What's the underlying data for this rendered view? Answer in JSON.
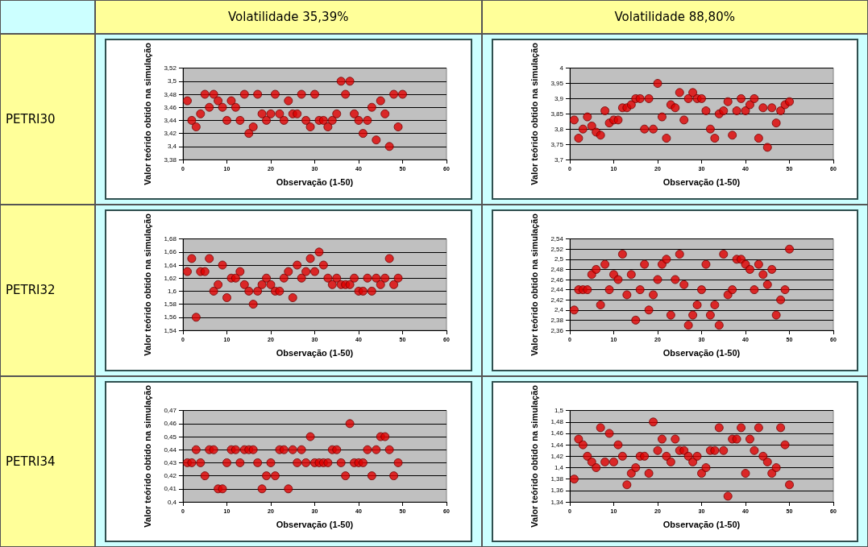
{
  "chart_data": [
    {
      "type": "scatter",
      "title": "Volatilidade 35,39%",
      "annotations": [
        "PETRI30"
      ],
      "xlabel": "Observação (1-50)",
      "ylabel": "Valor teórido obtido na simulação",
      "color": "#e00000",
      "marker": "circle",
      "grid": "y",
      "xlim": [
        0,
        60
      ],
      "xticks": [
        0,
        10,
        20,
        30,
        40,
        50,
        60
      ],
      "ylim": [
        3.38,
        3.52
      ],
      "yticks": [
        {
          "value": 3.38,
          "label": "3,38"
        },
        {
          "value": 3.4,
          "label": "3,4"
        },
        {
          "value": 3.42,
          "label": "3,42"
        },
        {
          "value": 3.44,
          "label": "3,44"
        },
        {
          "value": 3.46,
          "label": "3,46"
        },
        {
          "value": 3.48,
          "label": "3,48"
        },
        {
          "value": 3.5,
          "label": "3,5"
        },
        {
          "value": 3.52,
          "label": "3,52"
        }
      ],
      "x": [
        1,
        2,
        3,
        4,
        5,
        6,
        7,
        8,
        9,
        10,
        11,
        12,
        13,
        14,
        15,
        16,
        17,
        18,
        19,
        20,
        21,
        22,
        23,
        24,
        25,
        26,
        27,
        28,
        29,
        30,
        31,
        32,
        33,
        34,
        35,
        36,
        37,
        38,
        39,
        40,
        41,
        42,
        43,
        44,
        45,
        46,
        47,
        48,
        49,
        50
      ],
      "values": [
        3.47,
        3.44,
        3.43,
        3.45,
        3.48,
        3.46,
        3.48,
        3.47,
        3.46,
        3.44,
        3.47,
        3.46,
        3.44,
        3.48,
        3.42,
        3.43,
        3.48,
        3.45,
        3.44,
        3.45,
        3.48,
        3.45,
        3.44,
        3.47,
        3.45,
        3.45,
        3.48,
        3.44,
        3.43,
        3.48,
        3.44,
        3.44,
        3.43,
        3.44,
        3.45,
        3.5,
        3.48,
        3.5,
        3.45,
        3.44,
        3.42,
        3.44,
        3.46,
        3.41,
        3.47,
        3.45,
        3.4,
        3.48,
        3.43,
        3.48
      ]
    },
    {
      "type": "scatter",
      "title": "Volatilidade 88,80%",
      "xlabel": "Observação (1-50)",
      "ylabel": "Valor teórido obtido na simulação",
      "color": "#e00000",
      "marker": "circle",
      "grid": "y",
      "xlim": [
        0,
        60
      ],
      "xticks": [
        0,
        10,
        20,
        30,
        40,
        50,
        60
      ],
      "ylim": [
        3.7,
        4
      ],
      "yticks": [
        {
          "value": 3.7,
          "label": "3,7"
        },
        {
          "value": 3.75,
          "label": "3,75"
        },
        {
          "value": 3.8,
          "label": "3,8"
        },
        {
          "value": 3.85,
          "label": "3,85"
        },
        {
          "value": 3.9,
          "label": "3,9"
        },
        {
          "value": 3.95,
          "label": "3,95"
        },
        4
      ],
      "x": [
        1,
        2,
        3,
        4,
        5,
        6,
        7,
        8,
        9,
        10,
        11,
        12,
        13,
        14,
        15,
        16,
        17,
        18,
        19,
        20,
        21,
        22,
        23,
        24,
        25,
        26,
        27,
        28,
        29,
        30,
        31,
        32,
        33,
        34,
        35,
        36,
        37,
        38,
        39,
        40,
        41,
        42,
        43,
        44,
        45,
        46,
        47,
        48,
        49,
        50
      ],
      "values": [
        3.83,
        3.77,
        3.8,
        3.84,
        3.81,
        3.79,
        3.78,
        3.86,
        3.82,
        3.83,
        3.83,
        3.87,
        3.87,
        3.88,
        3.9,
        3.9,
        3.8,
        3.9,
        3.8,
        3.95,
        3.84,
        3.77,
        3.88,
        3.87,
        3.92,
        3.83,
        3.9,
        3.92,
        3.9,
        3.9,
        3.86,
        3.8,
        3.77,
        3.85,
        3.86,
        3.89,
        3.78,
        3.86,
        3.9,
        3.86,
        3.88,
        3.9,
        3.77,
        3.87,
        3.74,
        3.87,
        3.82,
        3.86,
        3.88,
        3.89
      ]
    },
    {
      "type": "scatter",
      "annotations": [
        "PETRI32"
      ],
      "xlabel": "Observação (1-50)",
      "ylabel": "Valor teórido obtido na simulação",
      "color": "#e00000",
      "marker": "circle",
      "grid": "y",
      "xlim": [
        0,
        60
      ],
      "xticks": [
        0,
        10,
        20,
        30,
        40,
        50,
        60
      ],
      "ylim": [
        1.54,
        1.68
      ],
      "yticks": [
        {
          "value": 1.54,
          "label": "1,54"
        },
        {
          "value": 1.56,
          "label": "1,56"
        },
        {
          "value": 1.58,
          "label": "1,58"
        },
        {
          "value": 1.6,
          "label": "1,6"
        },
        {
          "value": 1.62,
          "label": "1,62"
        },
        {
          "value": 1.64,
          "label": "1,64"
        },
        {
          "value": 1.66,
          "label": "1,66"
        },
        {
          "value": 1.68,
          "label": "1,68"
        }
      ],
      "x": [
        1,
        2,
        3,
        4,
        5,
        6,
        7,
        8,
        9,
        10,
        11,
        12,
        13,
        14,
        15,
        16,
        17,
        18,
        19,
        20,
        21,
        22,
        23,
        24,
        25,
        26,
        27,
        28,
        29,
        30,
        31,
        32,
        33,
        34,
        35,
        36,
        37,
        38,
        39,
        40,
        41,
        42,
        43,
        44,
        45,
        46,
        47,
        48,
        49
      ],
      "values": [
        1.63,
        1.65,
        1.56,
        1.63,
        1.63,
        1.65,
        1.6,
        1.61,
        1.64,
        1.59,
        1.62,
        1.62,
        1.63,
        1.61,
        1.6,
        1.58,
        1.6,
        1.61,
        1.62,
        1.61,
        1.6,
        1.6,
        1.62,
        1.63,
        1.59,
        1.64,
        1.62,
        1.63,
        1.65,
        1.63,
        1.66,
        1.64,
        1.62,
        1.61,
        1.62,
        1.61,
        1.61,
        1.61,
        1.62,
        1.6,
        1.6,
        1.62,
        1.6,
        1.62,
        1.61,
        1.62,
        1.65,
        1.61,
        1.62
      ]
    },
    {
      "type": "scatter",
      "xlabel": "Observação (1-50)",
      "ylabel": "Valor teórido obtido na simulação",
      "color": "#e00000",
      "marker": "circle",
      "grid": "y",
      "xlim": [
        0,
        60
      ],
      "xticks": [
        0,
        10,
        20,
        30,
        40,
        50,
        60
      ],
      "ylim": [
        2.36,
        2.54
      ],
      "yticks": [
        {
          "value": 2.36,
          "label": "2,36"
        },
        {
          "value": 2.38,
          "label": "2,38"
        },
        {
          "value": 2.4,
          "label": "2,4"
        },
        {
          "value": 2.42,
          "label": "2,42"
        },
        {
          "value": 2.44,
          "label": "2,44"
        },
        {
          "value": 2.46,
          "label": "2,46"
        },
        {
          "value": 2.48,
          "label": "2,48"
        },
        {
          "value": 2.5,
          "label": "2,5"
        },
        {
          "value": 2.52,
          "label": "2,52"
        },
        {
          "value": 2.54,
          "label": "2,54"
        }
      ],
      "x": [
        1,
        2,
        3,
        4,
        5,
        6,
        7,
        8,
        9,
        10,
        11,
        12,
        13,
        14,
        15,
        16,
        17,
        18,
        19,
        20,
        21,
        22,
        23,
        24,
        25,
        26,
        27,
        28,
        29,
        30,
        31,
        32,
        33,
        34,
        35,
        36,
        37,
        38,
        39,
        40,
        41,
        42,
        43,
        44,
        45,
        46,
        47,
        48,
        49,
        50
      ],
      "values": [
        2.4,
        2.44,
        2.44,
        2.44,
        2.47,
        2.48,
        2.41,
        2.49,
        2.44,
        2.47,
        2.46,
        2.51,
        2.43,
        2.47,
        2.38,
        2.44,
        2.49,
        2.4,
        2.43,
        2.46,
        2.49,
        2.5,
        2.39,
        2.46,
        2.51,
        2.45,
        2.37,
        2.39,
        2.41,
        2.44,
        2.49,
        2.39,
        2.41,
        2.37,
        2.51,
        2.43,
        2.44,
        2.5,
        2.5,
        2.49,
        2.48,
        2.44,
        2.49,
        2.47,
        2.45,
        2.48,
        2.39,
        2.42,
        2.44,
        2.52
      ]
    },
    {
      "type": "scatter",
      "annotations": [
        "PETRI34"
      ],
      "xlabel": "Observação (1-50)",
      "ylabel": "Valor teórido obtido na simulação",
      "color": "#e00000",
      "marker": "circle",
      "grid": "y",
      "xlim": [
        0,
        60
      ],
      "xticks": [
        0,
        10,
        20,
        30,
        40,
        50,
        60
      ],
      "ylim": [
        0.4,
        0.47
      ],
      "yticks": [
        {
          "value": 0.4,
          "label": "0,4"
        },
        {
          "value": 0.41,
          "label": "0,41"
        },
        {
          "value": 0.42,
          "label": "0,42"
        },
        {
          "value": 0.43,
          "label": "0,43"
        },
        {
          "value": 0.44,
          "label": "0,44"
        },
        {
          "value": 0.45,
          "label": "0,45"
        },
        {
          "value": 0.46,
          "label": "0,46"
        },
        {
          "value": 0.47,
          "label": "0,47"
        }
      ],
      "x": [
        1,
        2,
        3,
        4,
        5,
        6,
        7,
        8,
        9,
        10,
        11,
        12,
        13,
        14,
        15,
        16,
        17,
        18,
        19,
        20,
        21,
        22,
        23,
        24,
        25,
        26,
        27,
        28,
        29,
        30,
        31,
        32,
        33,
        34,
        35,
        36,
        37,
        38,
        39,
        40,
        41,
        42,
        43,
        44,
        45,
        46,
        47,
        48,
        49
      ],
      "values": [
        0.43,
        0.43,
        0.44,
        0.43,
        0.42,
        0.44,
        0.44,
        0.41,
        0.41,
        0.43,
        0.44,
        0.44,
        0.43,
        0.44,
        0.44,
        0.44,
        0.43,
        0.41,
        0.42,
        0.43,
        0.42,
        0.44,
        0.44,
        0.41,
        0.44,
        0.43,
        0.44,
        0.43,
        0.45,
        0.43,
        0.43,
        0.43,
        0.43,
        0.44,
        0.44,
        0.43,
        0.42,
        0.46,
        0.43,
        0.43,
        0.43,
        0.44,
        0.42,
        0.44,
        0.45,
        0.45,
        0.44,
        0.42,
        0.43
      ]
    },
    {
      "type": "scatter",
      "xlabel": "Observação (1-50)",
      "ylabel": "Valor teórido obtido na simulação",
      "color": "#e00000",
      "marker": "circle",
      "grid": "y",
      "xlim": [
        0,
        60
      ],
      "xticks": [
        0,
        10,
        20,
        30,
        40,
        50,
        60
      ],
      "ylim": [
        1.34,
        1.5
      ],
      "yticks": [
        {
          "value": 1.34,
          "label": "1,34"
        },
        {
          "value": 1.36,
          "label": "1,36"
        },
        {
          "value": 1.38,
          "label": "1,38"
        },
        {
          "value": 1.4,
          "label": "1,4"
        },
        {
          "value": 1.42,
          "label": "1,42"
        },
        {
          "value": 1.44,
          "label": "1,44"
        },
        {
          "value": 1.46,
          "label": "1,46"
        },
        {
          "value": 1.48,
          "label": "1,48"
        },
        {
          "value": 1.5,
          "label": "1,5"
        }
      ],
      "x": [
        1,
        2,
        3,
        4,
        5,
        6,
        7,
        8,
        9,
        10,
        11,
        12,
        13,
        14,
        15,
        16,
        17,
        18,
        19,
        20,
        21,
        22,
        23,
        24,
        25,
        26,
        27,
        28,
        29,
        30,
        31,
        32,
        33,
        34,
        35,
        36,
        37,
        38,
        39,
        40,
        41,
        42,
        43,
        44,
        45,
        46,
        47,
        48,
        49,
        50
      ],
      "values": [
        1.38,
        1.45,
        1.44,
        1.42,
        1.41,
        1.4,
        1.47,
        1.41,
        1.46,
        1.41,
        1.44,
        1.42,
        1.37,
        1.39,
        1.4,
        1.42,
        1.42,
        1.39,
        1.48,
        1.43,
        1.45,
        1.42,
        1.41,
        1.45,
        1.43,
        1.43,
        1.42,
        1.41,
        1.42,
        1.39,
        1.4,
        1.43,
        1.43,
        1.47,
        1.43,
        1.35,
        1.45,
        1.45,
        1.47,
        1.39,
        1.45,
        1.43,
        1.47,
        1.42,
        1.41,
        1.39,
        1.4,
        1.47,
        1.44,
        1.37
      ]
    }
  ]
}
